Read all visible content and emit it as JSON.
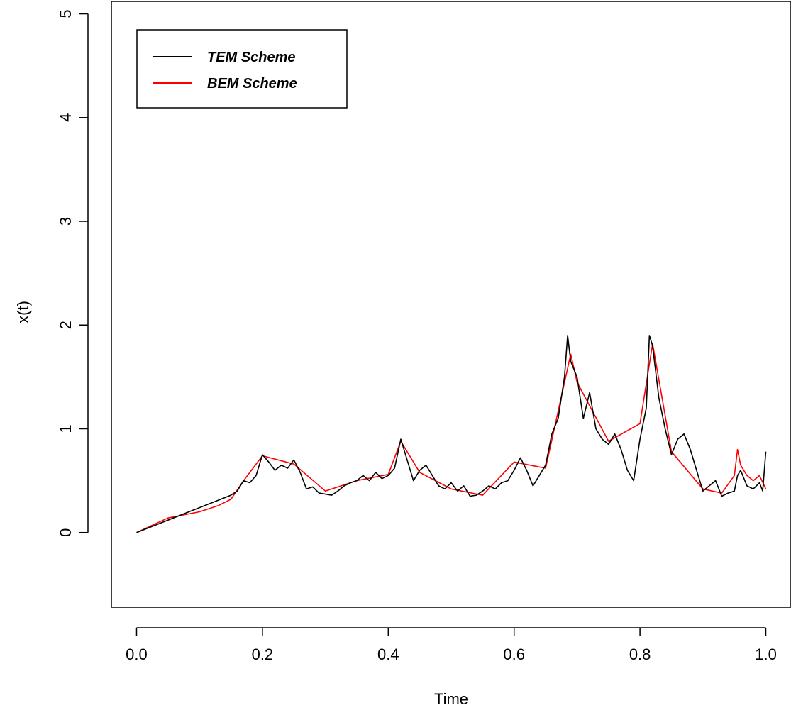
{
  "chart_data": {
    "type": "line",
    "xlabel": "Time",
    "ylabel": "x(t)",
    "xlim": [
      -0.04,
      1.04
    ],
    "ylim": [
      -0.72,
      5.12
    ],
    "x_ticks": [
      "0.0",
      "0.2",
      "0.4",
      "0.6",
      "0.8",
      "1.0"
    ],
    "y_ticks": [
      "0",
      "1",
      "2",
      "3",
      "4",
      "5"
    ],
    "grid": false,
    "legend_position": "top-left",
    "series": [
      {
        "name": "TEM Scheme",
        "color": "#000000",
        "x": [
          0.0,
          0.05,
          0.1,
          0.15,
          0.16,
          0.17,
          0.18,
          0.19,
          0.2,
          0.21,
          0.22,
          0.23,
          0.24,
          0.25,
          0.26,
          0.27,
          0.28,
          0.29,
          0.3,
          0.31,
          0.32,
          0.33,
          0.34,
          0.35,
          0.36,
          0.37,
          0.38,
          0.39,
          0.4,
          0.41,
          0.42,
          0.43,
          0.44,
          0.45,
          0.46,
          0.47,
          0.48,
          0.49,
          0.5,
          0.51,
          0.52,
          0.53,
          0.54,
          0.55,
          0.56,
          0.57,
          0.58,
          0.59,
          0.6,
          0.61,
          0.62,
          0.63,
          0.64,
          0.65,
          0.66,
          0.67,
          0.68,
          0.685,
          0.69,
          0.7,
          0.71,
          0.72,
          0.73,
          0.74,
          0.75,
          0.76,
          0.77,
          0.78,
          0.79,
          0.8,
          0.81,
          0.815,
          0.82,
          0.83,
          0.84,
          0.85,
          0.86,
          0.87,
          0.88,
          0.89,
          0.9,
          0.91,
          0.92,
          0.93,
          0.94,
          0.95,
          0.955,
          0.96,
          0.97,
          0.98,
          0.99,
          0.995,
          1.0
        ],
        "y": [
          0.0,
          0.12,
          0.24,
          0.36,
          0.4,
          0.5,
          0.48,
          0.55,
          0.75,
          0.68,
          0.6,
          0.65,
          0.62,
          0.7,
          0.58,
          0.42,
          0.44,
          0.38,
          0.37,
          0.36,
          0.4,
          0.45,
          0.48,
          0.5,
          0.55,
          0.5,
          0.58,
          0.52,
          0.55,
          0.62,
          0.9,
          0.7,
          0.5,
          0.6,
          0.65,
          0.55,
          0.45,
          0.42,
          0.48,
          0.4,
          0.45,
          0.35,
          0.36,
          0.4,
          0.45,
          0.42,
          0.48,
          0.5,
          0.6,
          0.72,
          0.6,
          0.45,
          0.55,
          0.65,
          0.95,
          1.1,
          1.5,
          1.9,
          1.65,
          1.5,
          1.1,
          1.35,
          1.0,
          0.9,
          0.85,
          0.95,
          0.8,
          0.6,
          0.5,
          0.9,
          1.2,
          1.9,
          1.8,
          1.3,
          1.0,
          0.75,
          0.9,
          0.95,
          0.8,
          0.6,
          0.4,
          0.45,
          0.5,
          0.35,
          0.38,
          0.4,
          0.55,
          0.6,
          0.45,
          0.42,
          0.48,
          0.4,
          0.78
        ]
      },
      {
        "name": "BEM Scheme",
        "color": "#ff0000",
        "x": [
          0.0,
          0.05,
          0.1,
          0.13,
          0.15,
          0.17,
          0.2,
          0.25,
          0.3,
          0.35,
          0.4,
          0.42,
          0.45,
          0.5,
          0.55,
          0.6,
          0.65,
          0.69,
          0.7,
          0.75,
          0.8,
          0.82,
          0.85,
          0.9,
          0.93,
          0.95,
          0.955,
          0.96,
          0.97,
          0.98,
          0.99,
          1.0
        ],
        "y": [
          0.0,
          0.14,
          0.2,
          0.26,
          0.32,
          0.5,
          0.74,
          0.66,
          0.4,
          0.5,
          0.56,
          0.88,
          0.58,
          0.42,
          0.36,
          0.68,
          0.62,
          1.72,
          1.45,
          0.88,
          1.05,
          1.82,
          0.78,
          0.42,
          0.38,
          0.55,
          0.8,
          0.65,
          0.55,
          0.5,
          0.55,
          0.42
        ]
      }
    ]
  }
}
